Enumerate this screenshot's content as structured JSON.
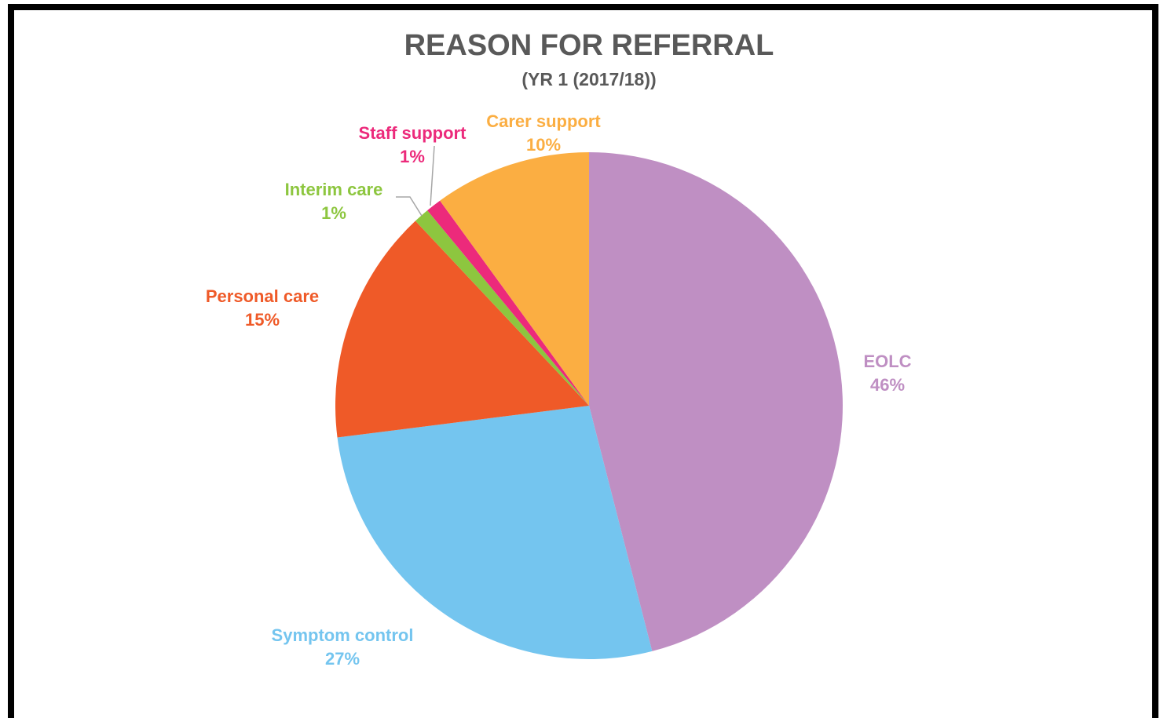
{
  "chart_data": {
    "type": "pie",
    "title": "REASON FOR REFERRAL",
    "subtitle": "(YR 1 (2017/18))",
    "categories": [
      "EOLC",
      "Symptom control",
      "Personal care",
      "Interim care",
      "Staff support",
      "Carer support"
    ],
    "values": [
      46,
      27,
      15,
      1,
      1,
      10
    ],
    "value_labels": [
      "46%",
      "27%",
      "15%",
      "1%",
      "1%",
      "10%"
    ],
    "colors": [
      "#bf8fc3",
      "#74c5ef",
      "#ef5a28",
      "#8dc63f",
      "#ec2a7b",
      "#fbae42"
    ]
  }
}
